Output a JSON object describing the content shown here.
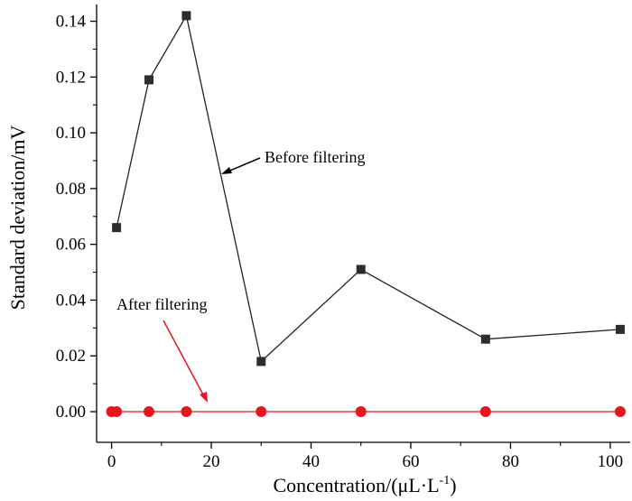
{
  "chart_data": {
    "type": "line",
    "xlabel": "Concentration/(μL·L",
    "xlabel_sup": "-1",
    "xlabel_close": ")",
    "ylabel": "Standard deviation/mV",
    "xlim": [
      -3,
      104
    ],
    "ylim": [
      -0.011,
      0.146
    ],
    "xticks": [
      0,
      20,
      40,
      60,
      80,
      100
    ],
    "xtick_labels": [
      "0",
      "20",
      "40",
      "60",
      "80",
      "100"
    ],
    "yticks": [
      0,
      0.02,
      0.04,
      0.06,
      0.08,
      0.1,
      0.12,
      0.14
    ],
    "ytick_labels": [
      "0.00",
      "0.02",
      "0.04",
      "0.06",
      "0.08",
      "0.10",
      "0.12",
      "0.14"
    ],
    "grid": false,
    "series": [
      {
        "name": "Before filtering",
        "marker": "square",
        "color": "#2d2d2d",
        "x": [
          1,
          7.5,
          15,
          30,
          50,
          75,
          102
        ],
        "y": [
          0.066,
          0.119,
          0.142,
          0.018,
          0.051,
          0.026,
          0.0295
        ]
      },
      {
        "name": "After filtering",
        "marker": "circle",
        "color": "#e8141e",
        "x": [
          0,
          1,
          7.5,
          15,
          30,
          50,
          75,
          102
        ],
        "y": [
          0,
          0,
          0,
          0,
          0,
          0,
          0,
          0
        ]
      }
    ],
    "annotations": [
      {
        "text": "Before filtering",
        "color": "#000000",
        "series": 0
      },
      {
        "text": "After filtering",
        "color": "#000000",
        "series": 1
      }
    ]
  }
}
